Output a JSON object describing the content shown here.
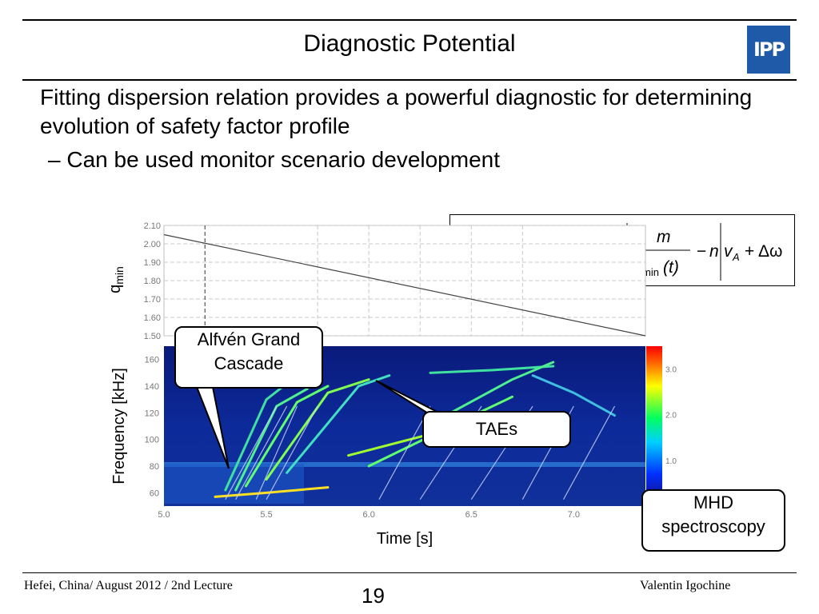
{
  "slide": {
    "title": "Diagnostic Potential",
    "logo_text": "IPP",
    "bullet1": "Fitting dispersion relation provides a powerful diagnostic for determining evolution of safety factor profile",
    "bullet2": "– Can be used monitor scenario development"
  },
  "callouts": {
    "agc": [
      "Alfvén Grand",
      "Cascade"
    ],
    "taes": "TAEs",
    "mhd": [
      "MHD",
      "spectroscopy"
    ]
  },
  "footer": {
    "left": "Hefei, China/ August 2012 / 2nd Lecture",
    "page": "19",
    "right": "Valentin Igochine"
  },
  "chart_data": [
    {
      "type": "line",
      "ylabel": "q",
      "ylabel_sub": "min",
      "xlim": [
        5.0,
        7.35
      ],
      "ylim": [
        1.5,
        2.1
      ],
      "yticks": [
        "2.10",
        "2.00",
        "1.90",
        "1.80",
        "1.70",
        "1.60",
        "1.50"
      ],
      "grid": true,
      "series": [
        {
          "x": [
            5.0,
            7.35
          ],
          "y": [
            2.05,
            1.5
          ]
        }
      ]
    },
    {
      "type": "heatmap",
      "xlabel": "Time [s]",
      "ylabel": "Frequency [kHz]",
      "xlim": [
        5.0,
        7.35
      ],
      "ylim": [
        50,
        170
      ],
      "xticks": [
        "5.0",
        "5.5",
        "6.0",
        "6.5",
        "7.0"
      ],
      "yticks": [
        "160",
        "140",
        "120",
        "100",
        "80",
        "60"
      ],
      "colorbar_ticks": [
        "3.0",
        "2.0",
        "1.0"
      ]
    }
  ]
}
